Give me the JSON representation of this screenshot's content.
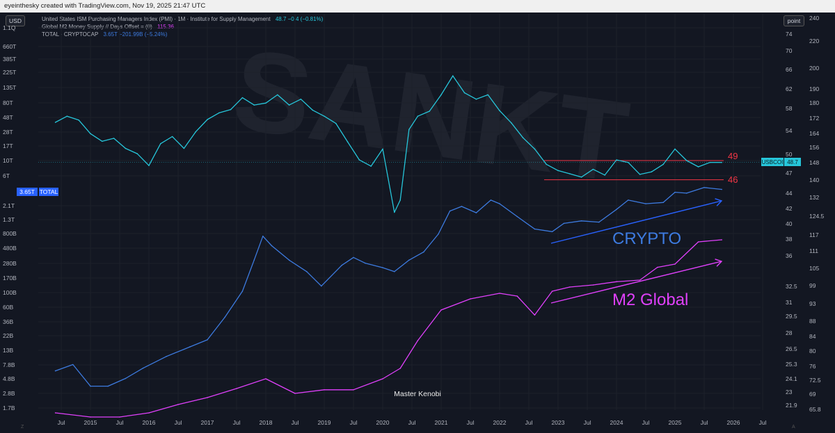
{
  "topbar": {
    "text": "eyeinthesky created with TradingView.com, Nov 19, 2025 21:47 UTC"
  },
  "controls": {
    "currency": "USD",
    "scale_mode": "point"
  },
  "legend": [
    {
      "label": "United States ISM Purchasing Managers Index (PMI) · 1M · Institute for Supply Management",
      "value": "48.7  −0.4 (−0.81%)",
      "color": "#26c6da"
    },
    {
      "label": "Global M2 Money Supply // Days Offset = (0)",
      "value": "115.36",
      "color": "#e040fb"
    },
    {
      "label": "TOTAL · CRYPTOCAP",
      "value": "3.65T  −201.99B (−5.24%)",
      "color": "#3d7be0"
    }
  ],
  "watermark": "SANKT",
  "credit": "Master Kenobi",
  "tags": {
    "crypto_value": "3.65T",
    "crypto_name": "TOTAL",
    "pmi_symbol": "USBCOI",
    "pmi_value": "48.7"
  },
  "annotations": {
    "crypto": "CRYPTO",
    "m2": "M2 Global",
    "level_high": "49",
    "level_low": "46"
  },
  "colors": {
    "background": "#131722",
    "pmi": "#26c6da",
    "m2": "#e040fb",
    "crypto": "#3d7be0",
    "levels": "#f23645",
    "arrow_crypto": "#2962ff",
    "arrow_m2": "#e040fb"
  },
  "chart_data": {
    "type": "line",
    "x_ticks": [
      "Jul",
      "2015",
      "Jul",
      "2016",
      "Jul",
      "2017",
      "Jul",
      "2018",
      "Jul",
      "2019",
      "Jul",
      "2020",
      "Jul",
      "2021",
      "Jul",
      "2022",
      "Jul",
      "2023",
      "Jul",
      "2024",
      "Jul",
      "2025",
      "Jul",
      "2026",
      "Jul"
    ],
    "y_left_ticks": [
      "1.1Q",
      "660T",
      "385T",
      "225T",
      "135T",
      "80T",
      "48T",
      "28T",
      "17T",
      "10T",
      "6T",
      "3.65T",
      "2.1T",
      "1.3T",
      "800B",
      "480B",
      "280B",
      "170B",
      "100B",
      "60B",
      "36B",
      "22B",
      "13B",
      "7.8B",
      "4.8B",
      "2.8B",
      "1.7B"
    ],
    "y_right_pmi_ticks": [
      "74",
      "70",
      "66",
      "62",
      "58",
      "54",
      "50",
      "47",
      "44",
      "42",
      "40",
      "38",
      "36",
      "32.5",
      "31",
      "29.5",
      "28",
      "26.5",
      "25.3",
      "24.1",
      "23",
      "21.9"
    ],
    "y_right_m2_ticks": [
      "240",
      "220",
      "200",
      "190",
      "180",
      "172",
      "164",
      "156",
      "148",
      "140",
      "132",
      "124.5",
      "117",
      "111",
      "105",
      "99",
      "93",
      "88",
      "84",
      "80",
      "76",
      "72.5",
      "69",
      "65.8"
    ],
    "horizontal_levels": [
      49,
      46
    ],
    "series": [
      {
        "name": "United States ISM Purchasing Managers Index (PMI)",
        "axis": "right",
        "x": [
          2014.4,
          2014.6,
          2014.8,
          2015.0,
          2015.2,
          2015.4,
          2015.6,
          2015.8,
          2016.0,
          2016.2,
          2016.4,
          2016.6,
          2016.8,
          2017.0,
          2017.2,
          2017.4,
          2017.6,
          2017.8,
          2018.0,
          2018.2,
          2018.4,
          2018.6,
          2018.8,
          2019.0,
          2019.2,
          2019.4,
          2019.6,
          2019.8,
          2020.0,
          2020.2,
          2020.3,
          2020.45,
          2020.6,
          2020.8,
          2021.0,
          2021.2,
          2021.4,
          2021.6,
          2021.8,
          2022.0,
          2022.2,
          2022.4,
          2022.6,
          2022.8,
          2023.0,
          2023.2,
          2023.4,
          2023.6,
          2023.8,
          2024.0,
          2024.2,
          2024.4,
          2024.6,
          2024.8,
          2025.0,
          2025.2,
          2025.4,
          2025.6,
          2025.8
        ],
        "values": [
          55.5,
          56.6,
          55.9,
          53.5,
          52.2,
          52.7,
          51.0,
          50.1,
          48.2,
          51.8,
          53.0,
          51.0,
          53.8,
          56.0,
          57.2,
          57.8,
          60.2,
          58.7,
          59.1,
          60.8,
          58.7,
          59.9,
          57.7,
          56.6,
          55.3,
          52.1,
          49.1,
          48.1,
          50.9,
          41.5,
          43.1,
          54.2,
          56.6,
          57.5,
          60.8,
          64.7,
          61.2,
          59.9,
          60.8,
          57.6,
          55.4,
          52.8,
          50.9,
          48.4,
          47.4,
          46.9,
          46.4,
          47.6,
          46.7,
          49.1,
          48.7,
          46.8,
          47.2,
          48.4,
          50.9,
          49.0,
          48.0,
          48.7,
          48.7
        ]
      },
      {
        "name": "Global M2 Money Supply",
        "axis": "right",
        "x": [
          2014.4,
          2015.0,
          2015.5,
          2016.0,
          2016.5,
          2017.0,
          2017.5,
          2018.0,
          2018.5,
          2019.0,
          2019.5,
          2020.0,
          2020.3,
          2020.6,
          2021.0,
          2021.5,
          2022.0,
          2022.3,
          2022.6,
          2022.9,
          2023.2,
          2023.6,
          2024.0,
          2024.4,
          2024.7,
          2025.0,
          2025.4,
          2025.8
        ],
        "values": [
          65.8,
          64,
          63,
          65.8,
          69,
          72.5,
          76,
          80,
          78,
          76.5,
          78.5,
          80,
          83,
          88,
          94,
          96,
          97,
          96.5,
          93,
          98,
          100,
          101,
          103,
          104,
          108,
          109,
          115,
          116
        ]
      },
      {
        "name": "TOTAL · CRYPTOCAP",
        "axis": "left",
        "x": [
          2014.4,
          2014.7,
          2015.0,
          2015.3,
          2015.6,
          2015.9,
          2016.3,
          2016.7,
          2017.0,
          2017.3,
          2017.6,
          2017.8,
          2017.95,
          2018.1,
          2018.4,
          2018.7,
          2018.95,
          2019.3,
          2019.5,
          2019.7,
          2020.0,
          2020.2,
          2020.45,
          2020.7,
          2020.95,
          2021.15,
          2021.35,
          2021.6,
          2021.85,
          2022.0,
          2022.3,
          2022.6,
          2022.9,
          2023.1,
          2023.4,
          2023.7,
          2024.0,
          2024.2,
          2024.5,
          2024.8,
          2025.0,
          2025.2,
          2025.5,
          2025.8
        ],
        "values": [
          6.0,
          7.5,
          3.5,
          3.5,
          4.6,
          6.6,
          10,
          14,
          18,
          40,
          100,
          300,
          700,
          500,
          300,
          200,
          120,
          250,
          330,
          270,
          230,
          200,
          300,
          400,
          750,
          1700,
          2000,
          1600,
          2500,
          2200,
          1400,
          900,
          820,
          1100,
          1200,
          1150,
          1800,
          2500,
          2200,
          2300,
          3300,
          3200,
          3900,
          3650
        ]
      }
    ]
  }
}
